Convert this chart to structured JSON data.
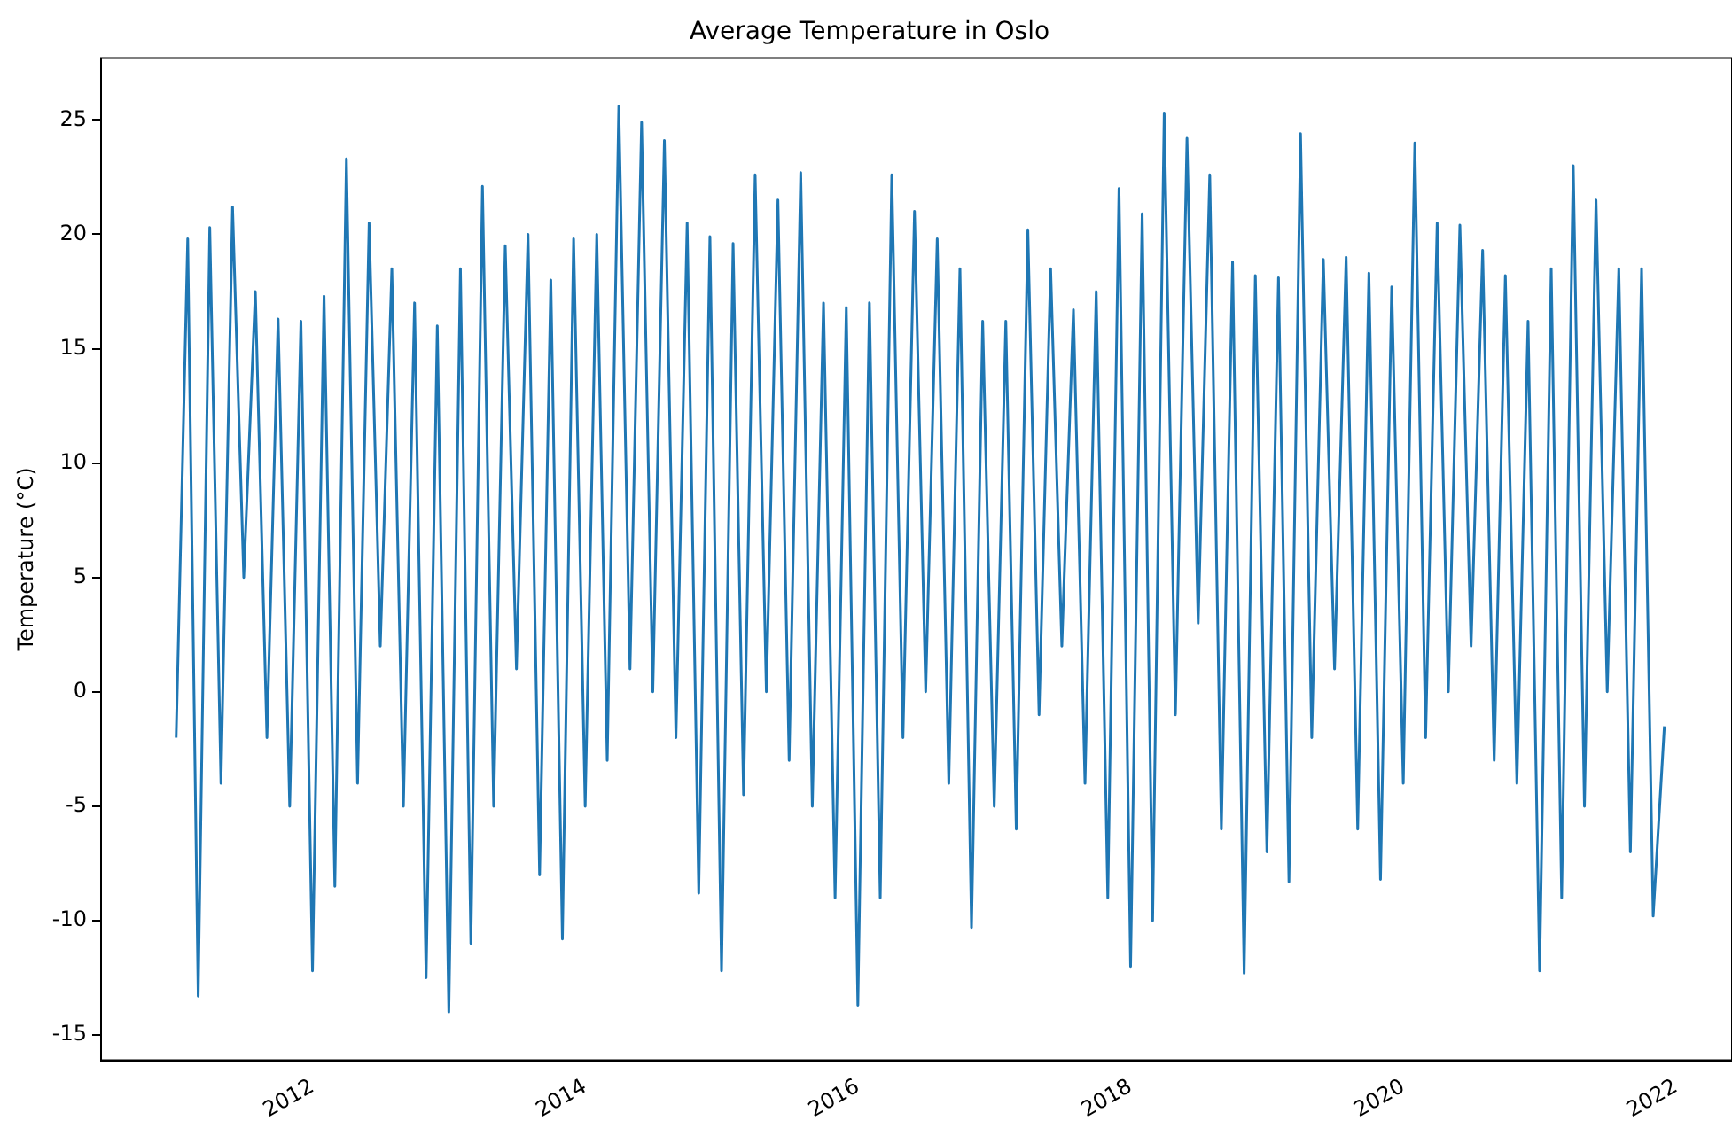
{
  "chart_data": {
    "type": "line",
    "title": "Average Temperature in Oslo",
    "ylabel": "Temperature (°C)",
    "x": [
      "2011-01-01",
      "2011-02-01",
      "2011-03-01",
      "2011-04-01",
      "2011-05-01",
      "2011-06-01",
      "2011-07-01",
      "2011-08-01",
      "2011-09-01",
      "2011-10-01",
      "2011-11-01",
      "2011-12-01",
      "2012-01-01",
      "2012-02-01",
      "2012-03-01",
      "2012-04-01",
      "2012-05-01",
      "2012-06-01",
      "2012-07-01",
      "2012-08-01",
      "2012-09-01",
      "2012-10-01",
      "2012-11-01",
      "2012-12-01",
      "2013-01-01",
      "2013-02-01",
      "2013-03-01",
      "2013-04-01",
      "2013-05-01",
      "2013-06-01",
      "2013-07-01",
      "2013-08-01",
      "2013-09-01",
      "2013-10-01",
      "2013-11-01",
      "2013-12-01",
      "2014-01-01",
      "2014-02-01",
      "2014-03-01",
      "2014-04-01",
      "2014-05-01",
      "2014-06-01",
      "2014-07-01",
      "2014-08-01",
      "2014-09-01",
      "2014-10-01",
      "2014-11-01",
      "2014-12-01",
      "2015-01-01",
      "2015-02-01",
      "2015-03-01",
      "2015-04-01",
      "2015-05-01",
      "2015-06-01",
      "2015-07-01",
      "2015-08-01",
      "2015-09-01",
      "2015-10-01",
      "2015-11-01",
      "2015-12-01",
      "2016-01-01",
      "2016-02-01",
      "2016-03-01",
      "2016-04-01",
      "2016-05-01",
      "2016-06-01",
      "2016-07-01",
      "2016-08-01",
      "2016-09-01",
      "2016-10-01",
      "2016-11-01",
      "2016-12-01",
      "2017-01-01",
      "2017-02-01",
      "2017-03-01",
      "2017-04-01",
      "2017-05-01",
      "2017-06-01",
      "2017-07-01",
      "2017-08-01",
      "2017-09-01",
      "2017-10-01",
      "2017-11-01",
      "2017-12-01",
      "2018-01-01",
      "2018-02-01",
      "2018-03-01",
      "2018-04-01",
      "2018-05-01",
      "2018-06-01",
      "2018-07-01",
      "2018-08-01",
      "2018-09-01",
      "2018-10-01",
      "2018-11-01",
      "2018-12-01",
      "2019-01-01",
      "2019-02-01",
      "2019-03-01",
      "2019-04-01",
      "2019-05-01",
      "2019-06-01",
      "2019-07-01",
      "2019-08-01",
      "2019-09-01",
      "2019-10-01",
      "2019-11-01",
      "2019-12-01",
      "2020-01-01",
      "2020-02-01",
      "2020-03-01",
      "2020-04-01",
      "2020-05-01",
      "2020-06-01",
      "2020-07-01",
      "2020-08-01",
      "2020-09-01",
      "2020-10-01",
      "2020-11-01",
      "2020-12-01",
      "2021-01-01",
      "2021-02-01",
      "2021-03-01",
      "2021-04-01",
      "2021-05-01",
      "2021-06-01",
      "2021-07-01",
      "2021-08-01",
      "2021-09-01",
      "2021-10-01",
      "2021-11-01",
      "2021-12-01"
    ],
    "series": [
      {
        "color": "#1f77b4",
        "values": [
          -2,
          19.8,
          -13.3,
          20.3,
          -4,
          21.2,
          5,
          17.5,
          -2,
          16.3,
          -5,
          16.2,
          -12.2,
          17.3,
          -8.5,
          23.3,
          -4,
          20.5,
          2,
          18.5,
          -5,
          17,
          -12.5,
          16,
          -14,
          18.5,
          -11,
          22.1,
          -5,
          19.5,
          1,
          20,
          -8,
          18,
          -10.8,
          19.8,
          -5,
          20,
          -3,
          25.6,
          1,
          24.9,
          0,
          24.1,
          -2,
          20.5,
          -8.8,
          19.9,
          -12.2,
          19.6,
          -4.5,
          22.6,
          0,
          21.5,
          -3,
          22.7,
          -5,
          17,
          -9,
          16.8,
          -13.7,
          17,
          -9,
          22.6,
          -2,
          21,
          0,
          19.8,
          -4,
          18.5,
          -10.3,
          16.2,
          -5,
          16.2,
          -6,
          20.2,
          -1,
          18.5,
          2,
          16.7,
          -4,
          17.5,
          -9,
          22,
          -12,
          20.9,
          -10,
          25.3,
          -1,
          24.2,
          3,
          22.6,
          -6,
          18.8,
          -12.3,
          18.2,
          -7,
          18.1,
          -8.3,
          24.4,
          -2,
          18.9,
          1,
          19,
          -6,
          18.3,
          -8.2,
          17.7,
          -4,
          24,
          -2,
          20.5,
          0,
          20.4,
          2,
          19.3,
          -3,
          18.2,
          -4,
          16.2,
          -12.2,
          18.5,
          -9,
          23,
          -5,
          21.5,
          0,
          18.5,
          -7,
          18.5,
          -9.8,
          -1.5
        ]
      }
    ],
    "xlim": [
      "2010-06-14",
      "2022-05-31"
    ],
    "xticks": [
      "2012",
      "2014",
      "2016",
      "2018",
      "2020",
      "2022"
    ],
    "ylim": [
      -16.1,
      27.7
    ],
    "yticks": [
      -15,
      -10,
      -5,
      0,
      5,
      10,
      15,
      20,
      25
    ],
    "grid": false,
    "legend": false,
    "marker": "none",
    "line_style": "solid"
  }
}
